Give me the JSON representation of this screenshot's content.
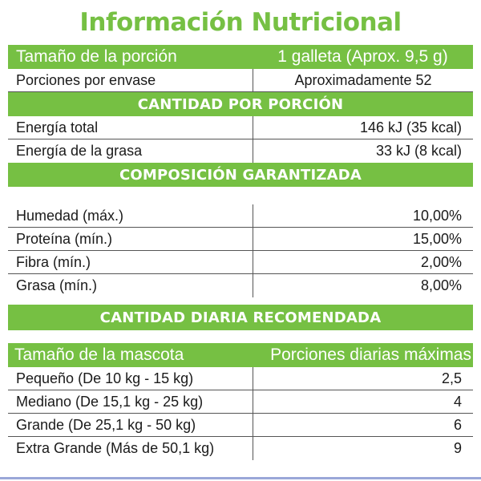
{
  "title": "Información Nutricional",
  "serving": {
    "label": "Tamaño de la porción",
    "value": "1 galleta (Aprox. 9,5 g)"
  },
  "servings_per_container": {
    "label": "Porciones por envase",
    "value": "Aproximadamente 52"
  },
  "amount_per_serving": {
    "heading": "CANTIDAD POR PORCIÓN",
    "rows": [
      {
        "label": "Energía total",
        "value": "146 kJ (35 kcal)"
      },
      {
        "label": "Energía de la grasa",
        "value": "33 kJ (8 kcal)"
      }
    ]
  },
  "guaranteed_composition": {
    "heading": "COMPOSICIÓN GARANTIZADA",
    "rows": [
      {
        "label": "Humedad (máx.)",
        "value": "10,00%"
      },
      {
        "label": "Proteína (mín.)",
        "value": "15,00%"
      },
      {
        "label": "Fibra (mín.)",
        "value": "2,00%"
      },
      {
        "label": "Grasa (mín.)",
        "value": "8,00%"
      }
    ]
  },
  "daily_recommended": {
    "heading": "CANTIDAD DIARIA RECOMENDADA",
    "col_pet_size": "Tamaño de la mascota",
    "col_max_servings": "Porciones diarias máximas",
    "rows": [
      {
        "label": "Pequeño (De 10 kg - 15 kg)",
        "value": "2,5"
      },
      {
        "label": "Mediano (De 15,1 kg - 25 kg)",
        "value": "4"
      },
      {
        "label": "Grande (De 25,1 kg - 50 kg)",
        "value": "6"
      },
      {
        "label": "Extra Grande (Más de 50,1 kg)",
        "value": "9"
      }
    ]
  },
  "colors": {
    "green": "#76c043",
    "rule_blue": "#9aa7d8",
    "text": "#1a1a1a"
  }
}
